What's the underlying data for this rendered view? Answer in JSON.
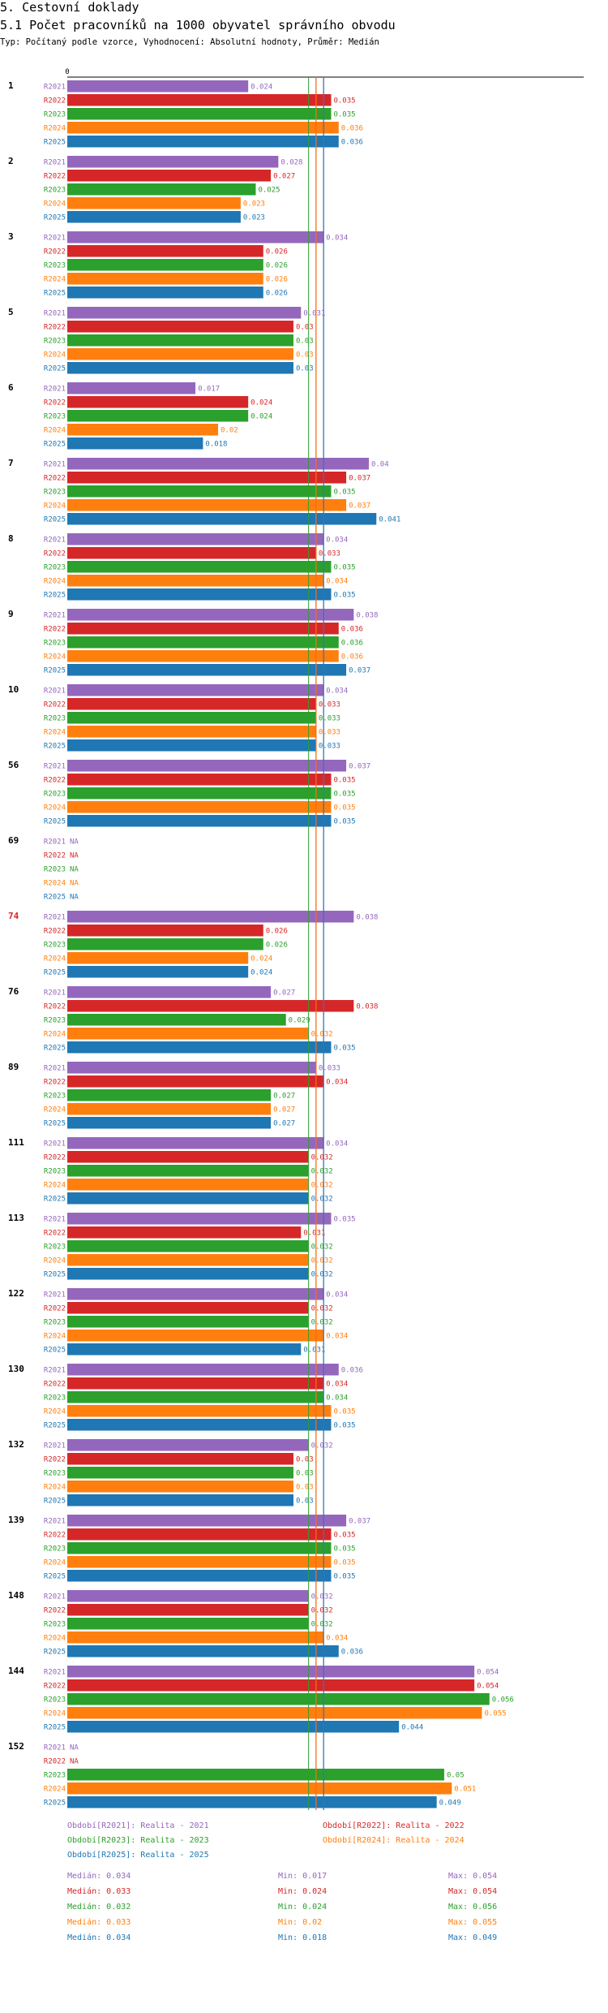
{
  "title": "5. Cestovní doklady",
  "subtitle": "5.1 Počet pracovníků na 1000 obyvatel správního obvodu",
  "note": "Typ: Počítaný podle vzorce, Vyhodnocení: Absolutní hodnoty, Průměr: Medián",
  "colors": {
    "R2021": "#9467bd",
    "R2022": "#d62728",
    "R2023": "#2ca02c",
    "R2024": "#ff7f0e",
    "R2025": "#1f77b4",
    "highlight": "#d62728"
  },
  "chart_data": {
    "type": "bar",
    "orientation": "horizontal",
    "axis_zero_label": "0",
    "xlim": [
      0,
      0.0685
    ],
    "na_label": "NA",
    "series_names": [
      "R2021",
      "R2022",
      "R2023",
      "R2024",
      "R2025"
    ],
    "highlighted_category": "74",
    "categories": [
      "1",
      "2",
      "3",
      "5",
      "6",
      "7",
      "8",
      "9",
      "10",
      "56",
      "69",
      "74",
      "76",
      "89",
      "111",
      "113",
      "122",
      "130",
      "132",
      "139",
      "148",
      "144",
      "152"
    ],
    "values": [
      [
        0.024,
        0.035,
        0.035,
        0.036,
        0.036
      ],
      [
        0.028,
        0.027,
        0.025,
        0.023,
        0.023
      ],
      [
        0.034,
        0.026,
        0.026,
        0.026,
        0.026
      ],
      [
        0.031,
        0.03,
        0.03,
        0.03,
        0.03
      ],
      [
        0.017,
        0.024,
        0.024,
        0.02,
        0.018
      ],
      [
        0.04,
        0.037,
        0.035,
        0.037,
        0.041
      ],
      [
        0.034,
        0.033,
        0.035,
        0.034,
        0.035
      ],
      [
        0.038,
        0.036,
        0.036,
        0.036,
        0.037
      ],
      [
        0.034,
        0.033,
        0.033,
        0.033,
        0.033
      ],
      [
        0.037,
        0.035,
        0.035,
        0.035,
        0.035
      ],
      [
        null,
        null,
        null,
        null,
        null
      ],
      [
        0.038,
        0.026,
        0.026,
        0.024,
        0.024
      ],
      [
        0.027,
        0.038,
        0.029,
        0.032,
        0.035
      ],
      [
        0.033,
        0.034,
        0.027,
        0.027,
        0.027
      ],
      [
        0.034,
        0.032,
        0.032,
        0.032,
        0.032
      ],
      [
        0.035,
        0.031,
        0.032,
        0.032,
        0.032
      ],
      [
        0.034,
        0.032,
        0.032,
        0.034,
        0.031
      ],
      [
        0.036,
        0.034,
        0.034,
        0.035,
        0.035
      ],
      [
        0.032,
        0.03,
        0.03,
        0.03,
        0.03
      ],
      [
        0.037,
        0.035,
        0.035,
        0.035,
        0.035
      ],
      [
        0.032,
        0.032,
        0.032,
        0.034,
        0.036
      ],
      [
        0.054,
        0.054,
        0.056,
        0.055,
        0.044
      ],
      [
        null,
        null,
        0.05,
        0.051,
        0.049
      ]
    ],
    "median_lines": [
      0.034,
      0.033,
      0.032,
      0.033,
      0.034
    ],
    "legend": [
      {
        "series": "R2021",
        "text": "Období[R2021]: Realita - 2021"
      },
      {
        "series": "R2022",
        "text": "Období[R2022]: Realita - 2022"
      },
      {
        "series": "R2023",
        "text": "Období[R2023]: Realita - 2023"
      },
      {
        "series": "R2024",
        "text": "Období[R2024]: Realita - 2024"
      },
      {
        "series": "R2025",
        "text": "Období[R2025]: Realita - 2025"
      }
    ],
    "stats": [
      {
        "series": "R2021",
        "median": "Medián: 0.034",
        "min": "Min: 0.017",
        "max": "Max: 0.054"
      },
      {
        "series": "R2022",
        "median": "Medián: 0.033",
        "min": "Min: 0.024",
        "max": "Max: 0.054"
      },
      {
        "series": "R2023",
        "median": "Medián: 0.032",
        "min": "Min: 0.024",
        "max": "Max: 0.056"
      },
      {
        "series": "R2024",
        "median": "Medián: 0.033",
        "min": "Min: 0.02",
        "max": "Max: 0.055"
      },
      {
        "series": "R2025",
        "median": "Medián: 0.034",
        "min": "Min: 0.018",
        "max": "Max: 0.049"
      }
    ]
  }
}
